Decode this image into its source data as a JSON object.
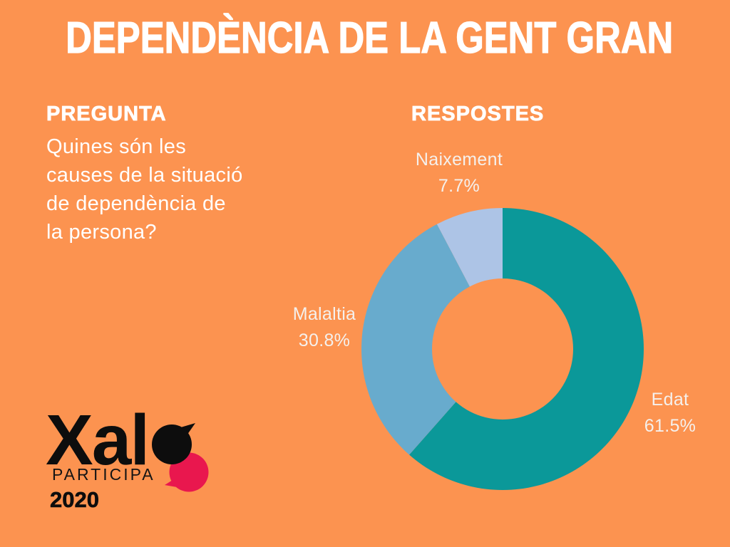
{
  "title": "DEPENDÈNCIA DE LA GENT GRAN",
  "question": {
    "heading": "PREGUNTA",
    "lines": [
      "Quines són les",
      "causes de la situació",
      "de dependència de",
      "la persona?"
    ]
  },
  "responses": {
    "heading": "RESPOSTES"
  },
  "chart_data": {
    "type": "pie",
    "style": "donut",
    "title": "RESPOSTES",
    "categories": [
      "Edat",
      "Malaltia",
      "Naixement"
    ],
    "values": [
      61.5,
      30.8,
      7.7
    ],
    "unit": "%",
    "colors": [
      "#0b9899",
      "#68abcd",
      "#adc4e6"
    ],
    "start_angle_deg": 0,
    "direction": "clockwise",
    "inner_radius_ratio": 0.5,
    "legend_position": "around-slices",
    "labels": [
      {
        "name": "Edat",
        "value_label": "61.5%"
      },
      {
        "name": "Malaltia",
        "value_label": "30.8%"
      },
      {
        "name": "Naixement",
        "value_label": "7.7%"
      }
    ]
  },
  "logo": {
    "brand": "Xal",
    "subtitle": "PARTICIPA",
    "year": "2020",
    "bubble_black": "#0d0d0d",
    "bubble_pink": "#e9174e"
  },
  "colors": {
    "background": "#fc9350",
    "title_text": "#ffffff",
    "label_text": "#f5f0ec"
  }
}
